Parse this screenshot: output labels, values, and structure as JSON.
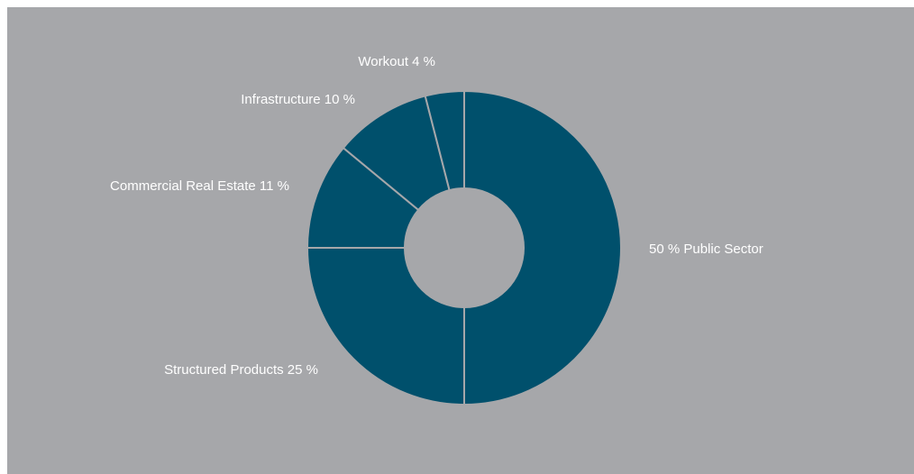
{
  "colors": {
    "background": "#a6a7aa",
    "slice": "#00506c",
    "slice_border": "#a6a7aa",
    "hole": "#a6a7aa",
    "label": "#ffffff"
  },
  "chart_data": {
    "type": "pie",
    "title": "",
    "donut": true,
    "start": "top",
    "direction": "clockwise",
    "legend": "none",
    "slices": [
      {
        "label": "Public Sector",
        "value": 50,
        "text": "50 %  Public Sector"
      },
      {
        "label": "Structured Products",
        "value": 25,
        "text": "Structured Products  25 %"
      },
      {
        "label": "Commercial Real Estate",
        "value": 11,
        "text": "Commercial Real Estate  11 %"
      },
      {
        "label": "Infrastructure",
        "value": 10,
        "text": "Infrastructure  10 %"
      },
      {
        "label": "Workout",
        "value": 4,
        "text": "Workout  4 %"
      }
    ]
  }
}
